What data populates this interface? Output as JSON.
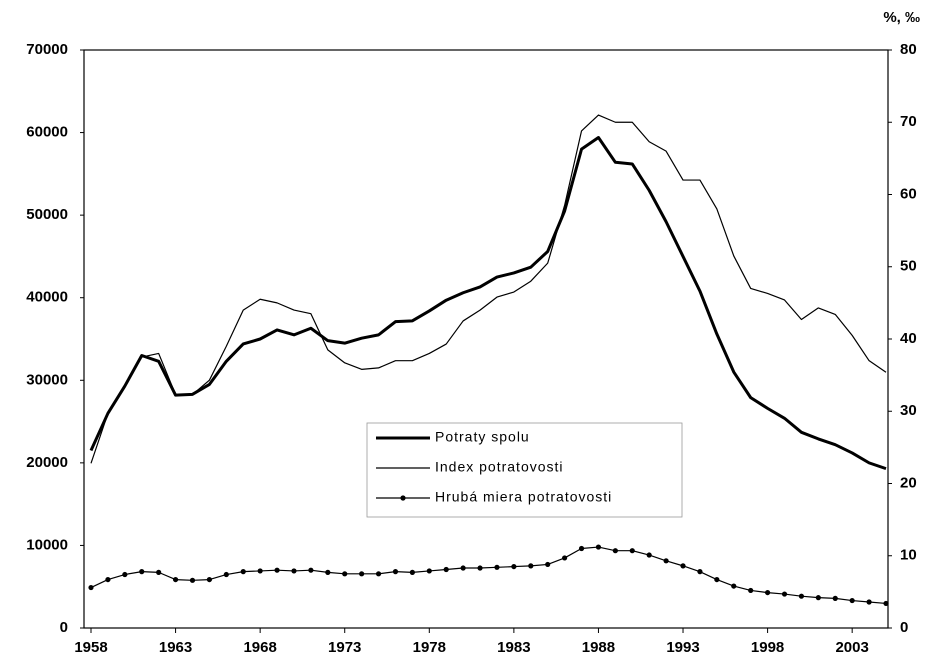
{
  "chart_data": {
    "type": "line",
    "y2_label": "%, ‰",
    "x": [
      1958,
      1959,
      1960,
      1961,
      1962,
      1963,
      1964,
      1965,
      1966,
      1967,
      1968,
      1969,
      1970,
      1971,
      1972,
      1973,
      1974,
      1975,
      1976,
      1977,
      1978,
      1979,
      1980,
      1981,
      1982,
      1983,
      1984,
      1985,
      1986,
      1987,
      1988,
      1989,
      1990,
      1991,
      1992,
      1993,
      1994,
      1995,
      1996,
      1997,
      1998,
      1999,
      2000,
      2001,
      2002,
      2003,
      2004,
      2005
    ],
    "xlim": [
      1958,
      2005
    ],
    "xticks": [
      1958,
      1963,
      1968,
      1973,
      1978,
      1983,
      1988,
      1993,
      1998,
      2003
    ],
    "ylim": [
      0,
      70000
    ],
    "yticks": [
      0,
      10000,
      20000,
      30000,
      40000,
      50000,
      60000,
      70000
    ],
    "y2lim": [
      0,
      80
    ],
    "y2ticks": [
      0,
      10,
      20,
      30,
      40,
      50,
      60,
      70,
      80
    ],
    "legend": "center",
    "series": [
      {
        "name": "Potraty spolu",
        "color": "#000000",
        "values": [
          21500,
          26000,
          29300,
          33000,
          32300,
          28200,
          28300,
          29500,
          32300,
          34400,
          35000,
          36100,
          35500,
          36300,
          34800,
          34500,
          35100,
          35500,
          37100,
          37200,
          38400,
          39700,
          40600,
          41300,
          42500,
          43000,
          43700,
          45600,
          50500,
          58000,
          59400,
          56400,
          56200,
          53000,
          49200,
          45000,
          40800,
          35600,
          31000,
          27900,
          26600,
          25400,
          23700,
          22900,
          22200,
          21200,
          20000,
          19300
        ]
      },
      {
        "name": "Index potratovosti",
        "color": "#000000",
        "axis": "y2",
        "values": [
          22.8,
          29.7,
          33.5,
          37.5,
          38.0,
          32.3,
          32.3,
          34.3,
          39.0,
          44.0,
          45.5,
          45.0,
          44.0,
          43.5,
          38.5,
          36.7,
          35.8,
          36.0,
          37.0,
          37.0,
          38.0,
          39.3,
          42.5,
          44.0,
          45.8,
          46.5,
          48.0,
          50.5,
          58.5,
          68.8,
          71.0,
          70.0,
          70.0,
          67.3,
          66.0,
          62.0,
          62.0,
          58.0,
          51.5,
          47.0,
          46.3,
          45.4,
          42.7,
          44.3,
          43.4,
          40.5,
          37.0,
          35.4
        ]
      },
      {
        "name": "Hrubá miera potratovosti",
        "color": "#000000",
        "axis": "y2",
        "values": [
          5.6,
          6.7,
          7.4,
          7.8,
          7.7,
          6.7,
          6.6,
          6.7,
          7.4,
          7.8,
          7.9,
          8.0,
          7.9,
          8.0,
          7.7,
          7.5,
          7.5,
          7.5,
          7.8,
          7.7,
          7.9,
          8.1,
          8.3,
          8.3,
          8.4,
          8.5,
          8.6,
          8.8,
          9.7,
          11.0,
          11.2,
          10.7,
          10.7,
          10.1,
          9.3,
          8.6,
          7.8,
          6.7,
          5.8,
          5.2,
          4.9,
          4.7,
          4.4,
          4.2,
          4.1,
          3.8,
          3.6,
          3.4
        ]
      }
    ]
  }
}
